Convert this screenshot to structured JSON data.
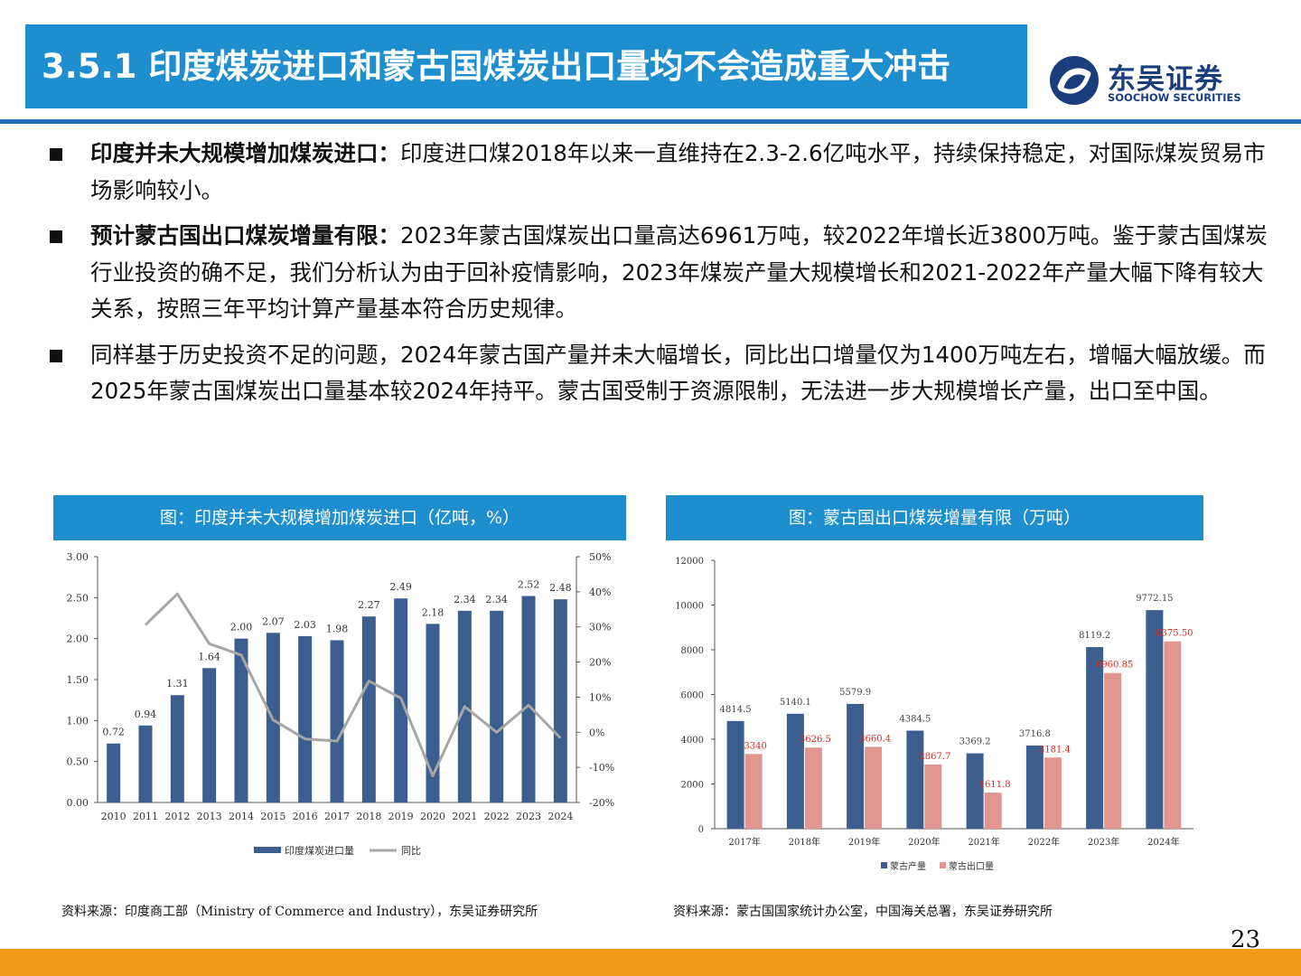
{
  "header": {
    "title": "3.5.1 印度煤炭进口和蒙古国煤炭出口量均不会造成重大冲击",
    "logo_cn": "东吴证券",
    "logo_en": "SOOCHOW SECURITIES"
  },
  "bullets": [
    {
      "bold": "印度并未大规模增加煤炭进口：",
      "text": "印度进口煤2018年以来一直维持在2.3-2.6亿吨水平，持续保持稳定，对国际煤炭贸易市场影响较小。"
    },
    {
      "bold": "预计蒙古国出口煤炭增量有限：",
      "text": "2023年蒙古国煤炭出口量高达6961万吨，较2022年增长近3800万吨。鉴于蒙古国煤炭行业投资的确不足，我们分析认为由于回补疫情影响，2023年煤炭产量大规模增长和2021-2022年产量大幅下降有较大关系，按照三年平均计算产量基本符合历史规律。"
    },
    {
      "bold": "",
      "text": "同样基于历史投资不足的问题，2024年蒙古国产量并未大幅增长，同比出口增量仅为1400万吨左右，增幅大幅放缓。而2025年蒙古国煤炭出口量基本较2024年持平。蒙古国受制于资源限制，无法进一步大规模增长产量，出口至中国。"
    }
  ],
  "charts": {
    "left_header": "图：印度并未大规模增加煤炭进口（亿吨，%）",
    "right_header": "图：蒙古国出口煤炭增量有限（万吨）",
    "left_source": "资料来源：印度商工部（Ministry of Commerce and Industry），东吴证券研究所",
    "right_source": "资料来源：蒙古国国家统计办公室，中国海关总署，东吴证券研究所"
  },
  "page_number": "23",
  "colors": {
    "blue_bar": "#3B5E8F",
    "pink_bar": "#E0958F",
    "line_gray": "#A6A6A6",
    "header_blue": "#1E8ECF",
    "label_red": "#E0261C"
  },
  "chart_data": [
    {
      "type": "bar",
      "title": "图：印度并未大规模增加煤炭进口（亿吨，%）",
      "categories": [
        "2010",
        "2011",
        "2012",
        "2013",
        "2014",
        "2015",
        "2016",
        "2017",
        "2018",
        "2019",
        "2020",
        "2021",
        "2022",
        "2023",
        "2024"
      ],
      "series": [
        {
          "name": "印度煤炭进口量",
          "type": "bar",
          "axis": "left",
          "values": [
            0.72,
            0.94,
            1.31,
            1.64,
            2.0,
            2.07,
            2.03,
            1.98,
            2.27,
            2.49,
            2.18,
            2.34,
            2.34,
            2.52,
            2.48
          ],
          "labels": [
            "0.72",
            "0.94",
            "1.31",
            "1.64",
            "2.00",
            "2.07",
            "2.03",
            "1.98",
            "2.27",
            "2.49",
            "2.18",
            "2.34",
            "2.34",
            "2.52",
            "2.48"
          ]
        },
        {
          "name": "同比",
          "type": "line",
          "axis": "right",
          "values": [
            null,
            30.6,
            39.4,
            25.2,
            22.0,
            3.5,
            -1.9,
            -2.5,
            14.6,
            9.7,
            -12.4,
            7.3,
            0,
            7.7,
            -1.6
          ]
        }
      ],
      "y_left": {
        "min": 0,
        "max": 3,
        "ticks": [
          "0.00",
          "0.50",
          "1.00",
          "1.50",
          "2.00",
          "2.50",
          "3.00"
        ]
      },
      "y_right": {
        "min": -20,
        "max": 50,
        "ticks": [
          "-20%",
          "-10%",
          "0%",
          "10%",
          "20%",
          "30%",
          "40%",
          "50%"
        ]
      },
      "legend": "bottom"
    },
    {
      "type": "bar",
      "title": "图：蒙古国出口煤炭增量有限（万吨）",
      "categories": [
        "2017年",
        "2018年",
        "2019年",
        "2020年",
        "2021年",
        "2022年",
        "2023年",
        "2024年"
      ],
      "series": [
        {
          "name": "蒙古产量",
          "values": [
            4814.5,
            5140.1,
            5579.9,
            4384.5,
            3369.2,
            3716.8,
            8119.2,
            9772.15
          ],
          "labels": [
            "4814.5",
            "5140.1",
            "5579.9",
            "4384.5",
            "3369.2",
            "3716.8",
            "8119.2",
            "9772.15"
          ]
        },
        {
          "name": "蒙古出口量",
          "values": [
            3340,
            3626.5,
            3660.4,
            2867.7,
            1611.8,
            3181.4,
            6960.85,
            8375.5
          ],
          "labels": [
            "3340",
            "3626.5",
            "3660.4",
            "2867.7",
            "1611.8",
            "3181.4",
            "6960.85",
            "8375.50"
          ]
        }
      ],
      "ylim": [
        0,
        12000
      ],
      "y_ticks": [
        "0",
        "2000",
        "4000",
        "6000",
        "8000",
        "10000",
        "12000"
      ],
      "legend": "bottom"
    }
  ]
}
